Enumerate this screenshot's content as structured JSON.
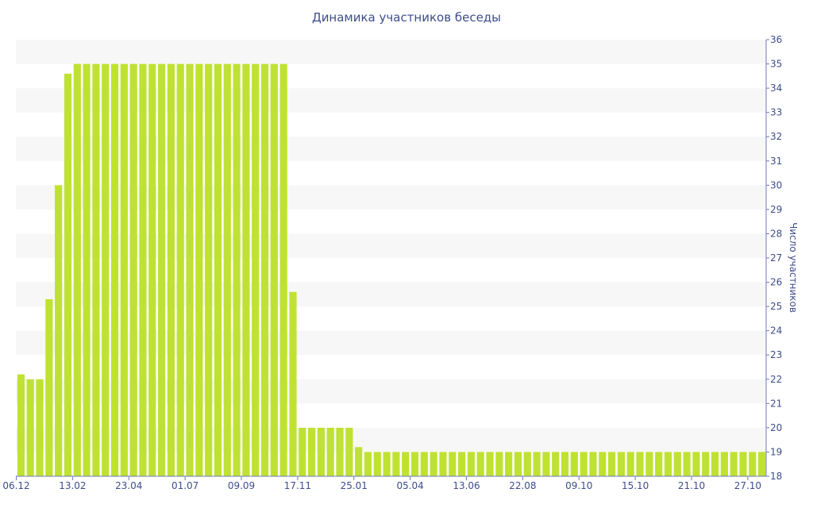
{
  "chart_data": {
    "type": "bar",
    "title": "Динамика участников беседы",
    "ylabel": "Число участников",
    "ylim": [
      18,
      36
    ],
    "y_axis_position": "right",
    "grid": "horizontal-bands",
    "colors": {
      "bar": "#bfe232",
      "band": "#f7f7f7",
      "text": "#3e4d8c",
      "axis": "#6c7ab0"
    },
    "x_tick_labels": [
      "06.12",
      "13.02",
      "23.04",
      "01.07",
      "09.09",
      "17.11",
      "25.01",
      "05.04",
      "13.06",
      "22.08",
      "09.10",
      "15.10",
      "21.10",
      "27.10"
    ],
    "x_tick_bar_index": [
      0,
      6,
      12,
      18,
      24,
      30,
      36,
      42,
      48,
      54,
      60,
      66,
      72,
      78
    ],
    "values": [
      22.2,
      22,
      22,
      25.3,
      30,
      34.6,
      35,
      35,
      35,
      35,
      35,
      35,
      35,
      35,
      35,
      35,
      35,
      35,
      35,
      35,
      35,
      35,
      35,
      35,
      35,
      35,
      35,
      35,
      35,
      25.6,
      20,
      20,
      20,
      20,
      20,
      20,
      19.2,
      19,
      19,
      19,
      19,
      19,
      19,
      19,
      19,
      19,
      19,
      19,
      19,
      19,
      19,
      19,
      19,
      19,
      19,
      19,
      19,
      19,
      19,
      19,
      19,
      19,
      19,
      19,
      19,
      19,
      19,
      19,
      19,
      19,
      19,
      19,
      19,
      19,
      19,
      19,
      19,
      19,
      19,
      19
    ]
  }
}
